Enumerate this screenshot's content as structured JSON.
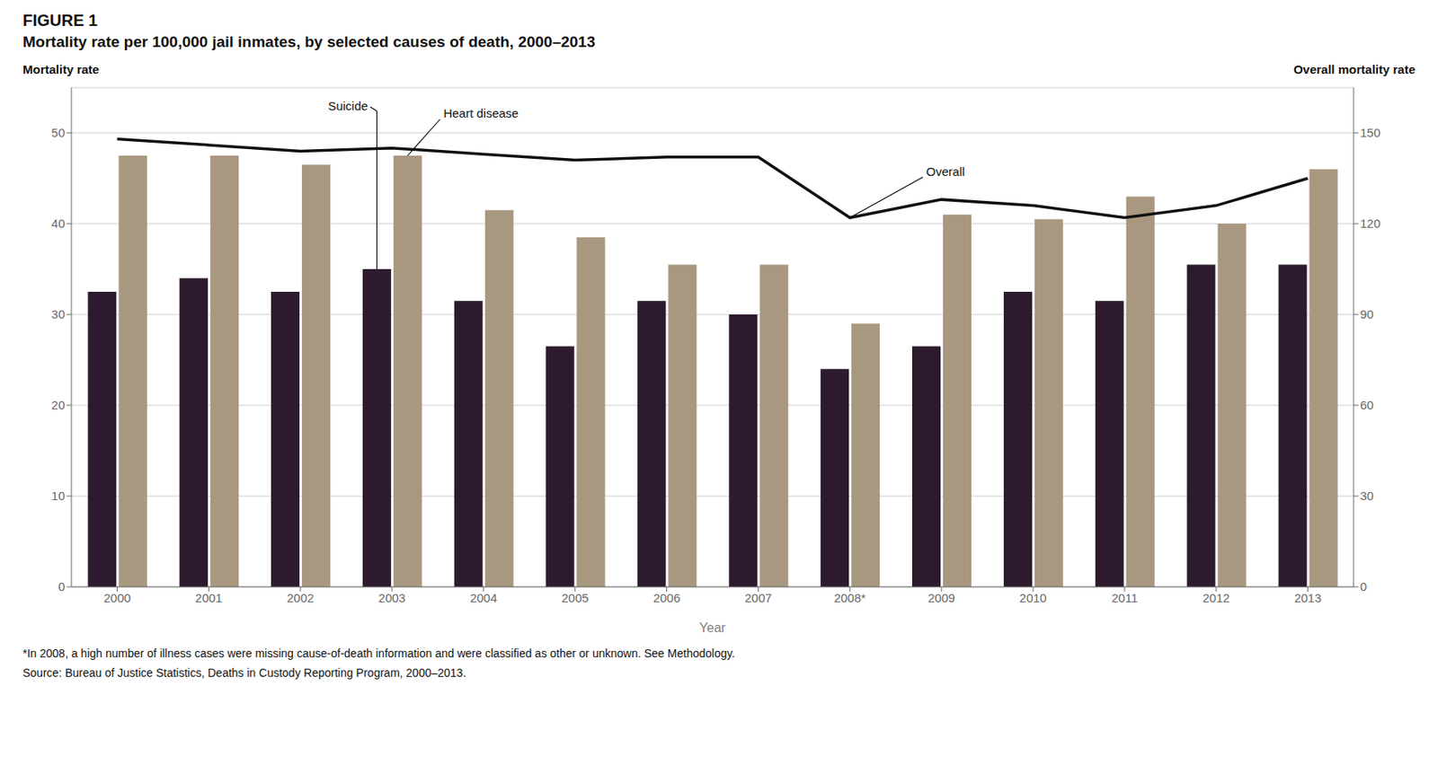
{
  "chart_data": {
    "type": "bar",
    "title": "FIGURE 1",
    "subtitle": "Mortality rate per 100,000 jail inmates, by selected causes of death, 2000–2013",
    "xlabel": "Year",
    "ylabel": "Mortality rate",
    "y2label": "Overall mortality rate",
    "categories": [
      "2000",
      "2001",
      "2002",
      "2003",
      "2004",
      "2005",
      "2006",
      "2007",
      "2008*",
      "2009",
      "2010",
      "2011",
      "2012",
      "2013"
    ],
    "series": [
      {
        "name": "Suicide",
        "type": "bar",
        "color": "#2d1a2e",
        "values": [
          32.5,
          34.0,
          32.5,
          35.0,
          31.5,
          26.5,
          31.5,
          30.0,
          24.0,
          26.5,
          32.5,
          31.5,
          35.5,
          35.5
        ]
      },
      {
        "name": "Heart disease",
        "type": "bar",
        "color": "#a89880",
        "values": [
          47.5,
          47.5,
          46.5,
          47.5,
          41.5,
          38.5,
          35.5,
          35.5,
          29.0,
          41.0,
          40.5,
          43.0,
          40.0,
          46.0
        ]
      },
      {
        "name": "Overall",
        "type": "line",
        "axis": "y2",
        "color": "#111111",
        "values": [
          148,
          146,
          144,
          145,
          143,
          141,
          142,
          142,
          122,
          128,
          126,
          122,
          126,
          135
        ]
      }
    ],
    "ylim": [
      0,
      55
    ],
    "yticks": [
      0,
      10,
      20,
      30,
      40,
      50
    ],
    "y2lim": [
      0,
      165
    ],
    "y2ticks": [
      0,
      30,
      60,
      90,
      120,
      150
    ],
    "grid": true,
    "annotations": [
      {
        "text": "Heart disease",
        "series": "Heart disease",
        "category": "2003"
      },
      {
        "text": "Suicide",
        "series": "Suicide",
        "category": "2003"
      },
      {
        "text": "Overall",
        "series": "Overall",
        "category": "2008*"
      }
    ],
    "footnote": "*In 2008, a high number of illness cases were missing cause-of-death information and were classified as other or unknown. See Methodology.",
    "source": "Source: Bureau of Justice Statistics, Deaths in Custody Reporting Program, 2000–2013."
  }
}
